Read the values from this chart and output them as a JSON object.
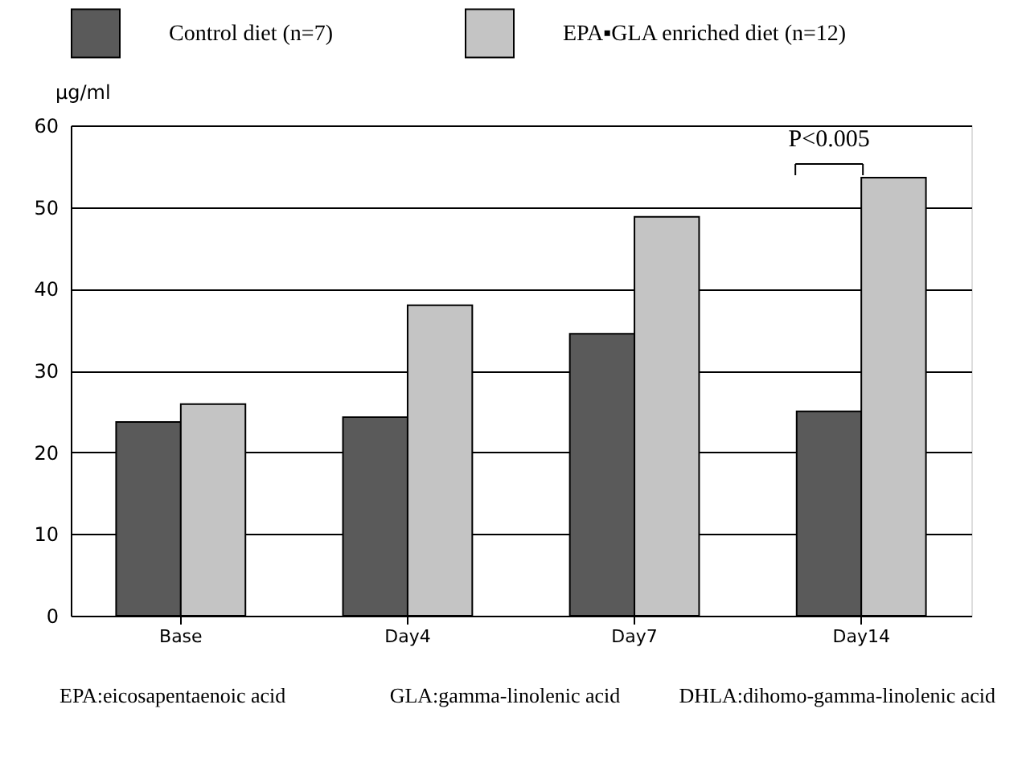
{
  "chart_data": {
    "type": "bar",
    "categories": [
      "Base",
      "Day4",
      "Day7",
      "Day14"
    ],
    "series": [
      {
        "name": "Control diet (n=7)",
        "color": "#5a5a5a",
        "values": [
          23.7,
          24.3,
          34.5,
          25.0
        ]
      },
      {
        "name": "EPA▪GLA enriched diet (n=12)",
        "color": "#c4c4c4",
        "values": [
          25.9,
          38.0,
          48.8,
          53.6
        ]
      }
    ],
    "ylabel": "μg/ml",
    "ylim": [
      0,
      60
    ],
    "yticks": [
      0,
      10,
      20,
      30,
      40,
      50,
      60
    ],
    "grid": "y",
    "legend": "top",
    "annotations": [
      "P<0.005",
      "EPA:eicosapentaenoic acid",
      "GLA:gamma-linolenic acid",
      "DHLA:dihomo-gamma-linolenic acid"
    ]
  }
}
